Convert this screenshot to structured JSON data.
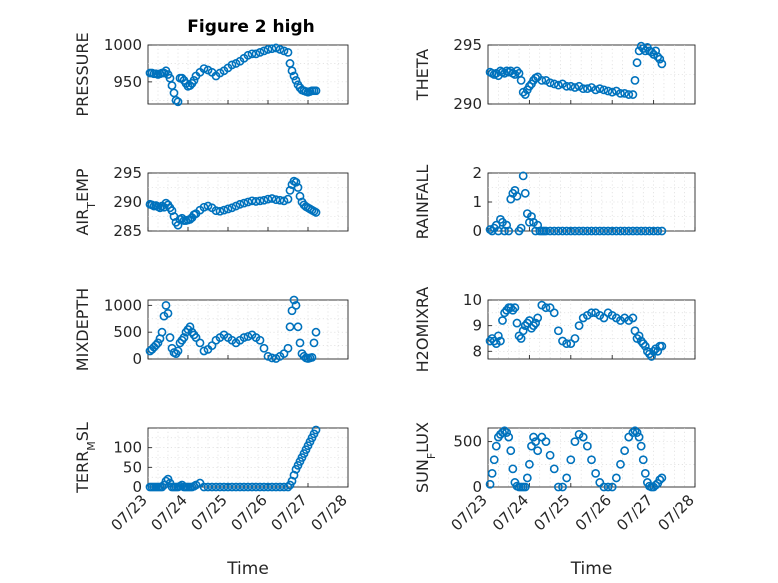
{
  "figure": {
    "title": "Figure 2 high"
  },
  "colors": {
    "marker": "#0072bd",
    "axis": "#262626",
    "grid": "#d4d4d4"
  },
  "chart_data": [
    {
      "type": "scatter",
      "ylabel": "PRESSURE",
      "ylabel_sub": "",
      "ylabel_rest": "",
      "title": "Figure 2 high",
      "ylim": [
        920,
        1000
      ],
      "yticks": [
        950,
        1000
      ],
      "xlim": [
        "07/23",
        "07/28"
      ],
      "xticks": [
        "07/23",
        "07/24",
        "07/25",
        "07/26",
        "07/27",
        "07/28"
      ],
      "xlabel": "",
      "grid": true,
      "x": [
        0.05,
        0.1,
        0.15,
        0.2,
        0.25,
        0.3,
        0.35,
        0.4,
        0.45,
        0.5,
        0.55,
        0.6,
        0.65,
        0.7,
        0.75,
        0.8,
        0.85,
        0.9,
        0.95,
        1.0,
        1.05,
        1.1,
        1.15,
        1.2,
        1.3,
        1.4,
        1.5,
        1.6,
        1.7,
        1.8,
        1.9,
        2.0,
        2.1,
        2.2,
        2.3,
        2.4,
        2.5,
        2.6,
        2.7,
        2.8,
        2.9,
        3.0,
        3.1,
        3.2,
        3.3,
        3.4,
        3.5,
        3.55,
        3.6,
        3.65,
        3.7,
        3.75,
        3.8,
        3.85,
        3.9,
        3.95,
        4.0,
        4.05,
        4.1,
        4.15,
        4.2
      ],
      "y": [
        962,
        962,
        961,
        961,
        960,
        961,
        962,
        962,
        965,
        960,
        955,
        945,
        935,
        925,
        923,
        955,
        955,
        952,
        948,
        944,
        945,
        948,
        952,
        958,
        963,
        968,
        966,
        963,
        958,
        962,
        965,
        969,
        973,
        975,
        978,
        982,
        986,
        988,
        988,
        990,
        992,
        994,
        995,
        996,
        994,
        992,
        990,
        975,
        965,
        958,
        952,
        946,
        942,
        939,
        938,
        937,
        936,
        937,
        938,
        938,
        938
      ]
    },
    {
      "type": "scatter",
      "ylabel": "THETA",
      "ylabel_sub": "",
      "ylabel_rest": "",
      "ylim": [
        290,
        295
      ],
      "yticks": [
        290,
        295
      ],
      "xlim": [
        "07/23",
        "07/28"
      ],
      "xticks": [
        "07/23",
        "07/24",
        "07/25",
        "07/26",
        "07/27",
        "07/28"
      ],
      "xlabel": "",
      "grid": true,
      "x": [
        0.05,
        0.1,
        0.15,
        0.2,
        0.25,
        0.3,
        0.35,
        0.4,
        0.45,
        0.5,
        0.55,
        0.6,
        0.65,
        0.7,
        0.75,
        0.8,
        0.85,
        0.9,
        0.95,
        1.0,
        1.05,
        1.1,
        1.15,
        1.2,
        1.3,
        1.4,
        1.5,
        1.6,
        1.7,
        1.8,
        1.9,
        2.0,
        2.1,
        2.2,
        2.3,
        2.4,
        2.5,
        2.6,
        2.7,
        2.8,
        2.9,
        3.0,
        3.1,
        3.2,
        3.3,
        3.4,
        3.5,
        3.55,
        3.6,
        3.65,
        3.7,
        3.75,
        3.8,
        3.85,
        3.9,
        3.95,
        4.0,
        4.05,
        4.1,
        4.15,
        4.2
      ],
      "y": [
        292.7,
        292.6,
        292.5,
        292.6,
        292.4,
        292.8,
        292.7,
        292.6,
        292.8,
        292.7,
        292.8,
        292.6,
        292.5,
        292.8,
        292.6,
        292.0,
        291.0,
        290.8,
        291.2,
        291.5,
        291.7,
        292.0,
        292.2,
        292.3,
        292.0,
        292.0,
        291.8,
        291.7,
        291.6,
        291.7,
        291.5,
        291.5,
        291.4,
        291.5,
        291.3,
        291.3,
        291.4,
        291.2,
        291.3,
        291.2,
        291.1,
        291.0,
        291.1,
        290.9,
        290.9,
        290.8,
        290.8,
        292.0,
        293.5,
        294.5,
        294.9,
        294.7,
        294.5,
        294.8,
        294.5,
        294.4,
        294.2,
        294.5,
        294.0,
        293.8,
        293.4
      ]
    },
    {
      "type": "scatter",
      "ylabel": "AIR",
      "ylabel_sub": "T",
      "ylabel_rest": "EMP",
      "ylim": [
        285,
        295
      ],
      "yticks": [
        285,
        290,
        295
      ],
      "xlim": [
        "07/23",
        "07/28"
      ],
      "xticks": [
        "07/23",
        "07/24",
        "07/25",
        "07/26",
        "07/27",
        "07/28"
      ],
      "xlabel": "",
      "grid": true,
      "x": [
        0.05,
        0.1,
        0.15,
        0.2,
        0.25,
        0.3,
        0.35,
        0.4,
        0.45,
        0.5,
        0.55,
        0.6,
        0.65,
        0.7,
        0.75,
        0.8,
        0.85,
        0.9,
        0.95,
        1.0,
        1.05,
        1.1,
        1.15,
        1.2,
        1.3,
        1.4,
        1.5,
        1.6,
        1.7,
        1.8,
        1.9,
        2.0,
        2.1,
        2.2,
        2.3,
        2.4,
        2.5,
        2.6,
        2.7,
        2.8,
        2.9,
        3.0,
        3.1,
        3.2,
        3.3,
        3.4,
        3.5,
        3.55,
        3.6,
        3.65,
        3.7,
        3.75,
        3.8,
        3.85,
        3.9,
        3.95,
        4.0,
        4.05,
        4.1,
        4.15,
        4.2
      ],
      "y": [
        289.6,
        289.5,
        289.3,
        289.4,
        289.2,
        289.0,
        289.3,
        289.1,
        289.8,
        289.5,
        289.0,
        288.5,
        287.5,
        286.5,
        286.0,
        287.0,
        287.2,
        286.8,
        286.8,
        286.9,
        287.0,
        287.3,
        287.8,
        288.0,
        288.6,
        289.1,
        289.3,
        289.0,
        288.5,
        288.4,
        288.6,
        288.8,
        289.0,
        289.3,
        289.6,
        289.8,
        290.0,
        290.2,
        290.1,
        290.2,
        290.3,
        290.5,
        290.6,
        290.4,
        290.3,
        290.2,
        290.5,
        292.0,
        293.0,
        293.6,
        293.4,
        292.5,
        291.0,
        290.0,
        289.5,
        289.2,
        289.0,
        288.8,
        288.6,
        288.4,
        288.2
      ]
    },
    {
      "type": "scatter",
      "ylabel": "RAINFALL",
      "ylabel_sub": "",
      "ylabel_rest": "",
      "ylim": [
        0,
        2
      ],
      "yticks": [
        0,
        1,
        2
      ],
      "xlim": [
        "07/23",
        "07/28"
      ],
      "xticks": [
        "07/23",
        "07/24",
        "07/25",
        "07/26",
        "07/27",
        "07/28"
      ],
      "xlabel": "",
      "grid": true,
      "x": [
        0.05,
        0.1,
        0.15,
        0.2,
        0.25,
        0.3,
        0.35,
        0.4,
        0.45,
        0.5,
        0.55,
        0.6,
        0.65,
        0.7,
        0.75,
        0.8,
        0.85,
        0.9,
        0.95,
        1.0,
        1.05,
        1.1,
        1.15,
        1.2,
        1.25,
        1.3,
        1.35,
        1.4,
        1.5,
        1.6,
        1.7,
        1.8,
        1.9,
        2.0,
        2.1,
        2.2,
        2.3,
        2.4,
        2.5,
        2.6,
        2.7,
        2.8,
        2.9,
        3.0,
        3.1,
        3.2,
        3.3,
        3.4,
        3.5,
        3.6,
        3.7,
        3.8,
        3.9,
        4.0,
        4.1,
        4.2
      ],
      "y": [
        0.05,
        0.0,
        0.1,
        0.2,
        0.0,
        0.4,
        0.3,
        0.0,
        0.2,
        0.0,
        1.1,
        1.3,
        1.4,
        1.2,
        0.0,
        0.1,
        1.9,
        1.3,
        0.6,
        0.3,
        0.5,
        0.3,
        0.0,
        0.2,
        0.0,
        0.0,
        0.0,
        0.0,
        0.0,
        0.0,
        0.0,
        0.0,
        0.0,
        0.0,
        0.0,
        0.0,
        0.0,
        0.0,
        0.0,
        0.0,
        0.0,
        0.0,
        0.0,
        0.0,
        0.0,
        0.0,
        0.0,
        0.0,
        0.0,
        0.0,
        0.0,
        0.0,
        0.0,
        0.0,
        0.0,
        0.0
      ]
    },
    {
      "type": "scatter",
      "ylabel": "MIXDEPTH",
      "ylabel_sub": "",
      "ylabel_rest": "",
      "ylim": [
        0,
        1100
      ],
      "yticks": [
        0,
        500,
        1000
      ],
      "xlim": [
        "07/23",
        "07/28"
      ],
      "xticks": [
        "07/23",
        "07/24",
        "07/25",
        "07/26",
        "07/27",
        "07/28"
      ],
      "xlabel": "",
      "grid": true,
      "x": [
        0.05,
        0.1,
        0.15,
        0.2,
        0.25,
        0.3,
        0.35,
        0.4,
        0.45,
        0.5,
        0.55,
        0.6,
        0.65,
        0.7,
        0.75,
        0.8,
        0.85,
        0.9,
        0.95,
        1.0,
        1.05,
        1.1,
        1.15,
        1.2,
        1.3,
        1.4,
        1.5,
        1.6,
        1.7,
        1.8,
        1.9,
        2.0,
        2.1,
        2.2,
        2.3,
        2.4,
        2.5,
        2.6,
        2.7,
        2.8,
        2.9,
        3.0,
        3.1,
        3.2,
        3.3,
        3.4,
        3.5,
        3.55,
        3.6,
        3.65,
        3.7,
        3.75,
        3.8,
        3.85,
        3.9,
        3.95,
        4.0,
        4.05,
        4.1,
        4.15,
        4.2
      ],
      "y": [
        150,
        180,
        220,
        260,
        300,
        380,
        500,
        800,
        1000,
        850,
        400,
        200,
        120,
        100,
        150,
        300,
        350,
        400,
        500,
        550,
        600,
        500,
        450,
        400,
        300,
        150,
        180,
        250,
        350,
        400,
        450,
        400,
        350,
        300,
        350,
        400,
        420,
        450,
        400,
        350,
        200,
        50,
        20,
        10,
        50,
        100,
        200,
        600,
        900,
        1100,
        1000,
        600,
        300,
        100,
        50,
        20,
        10,
        20,
        30,
        300,
        500
      ]
    },
    {
      "type": "scatter",
      "ylabel": "H2OMIXRA",
      "ylabel_sub": "",
      "ylabel_rest": "",
      "ylim": [
        7.7,
        10
      ],
      "yticks": [
        8,
        9,
        10
      ],
      "xlim": [
        "07/23",
        "07/28"
      ],
      "xticks": [
        "07/23",
        "07/24",
        "07/25",
        "07/26",
        "07/27",
        "07/28"
      ],
      "xlabel": "",
      "grid": true,
      "x": [
        0.05,
        0.1,
        0.15,
        0.2,
        0.25,
        0.3,
        0.35,
        0.4,
        0.45,
        0.5,
        0.55,
        0.6,
        0.65,
        0.7,
        0.75,
        0.8,
        0.85,
        0.9,
        0.95,
        1.0,
        1.05,
        1.1,
        1.15,
        1.2,
        1.3,
        1.4,
        1.5,
        1.6,
        1.7,
        1.8,
        1.9,
        2.0,
        2.1,
        2.2,
        2.3,
        2.4,
        2.5,
        2.6,
        2.7,
        2.8,
        2.9,
        3.0,
        3.1,
        3.2,
        3.3,
        3.4,
        3.5,
        3.55,
        3.6,
        3.65,
        3.7,
        3.75,
        3.8,
        3.85,
        3.9,
        3.95,
        4.0,
        4.05,
        4.1,
        4.15,
        4.2
      ],
      "y": [
        8.4,
        8.5,
        8.4,
        8.3,
        8.6,
        8.4,
        9.2,
        9.5,
        9.6,
        9.7,
        9.7,
        9.6,
        9.7,
        9.1,
        8.6,
        8.5,
        8.8,
        9.0,
        9.1,
        9.2,
        8.9,
        9.0,
        9.1,
        9.3,
        9.8,
        9.7,
        9.7,
        9.5,
        8.8,
        8.4,
        8.3,
        8.3,
        8.5,
        9.0,
        9.3,
        9.4,
        9.5,
        9.5,
        9.4,
        9.3,
        9.5,
        9.4,
        9.3,
        9.2,
        9.3,
        9.2,
        9.3,
        8.8,
        8.5,
        8.6,
        8.4,
        8.3,
        8.2,
        8.0,
        7.9,
        7.8,
        8.0,
        8.1,
        8.0,
        8.2,
        8.2
      ]
    },
    {
      "type": "scatter",
      "ylabel": "TERR",
      "ylabel_sub": "M",
      "ylabel_rest": "SL",
      "ylim": [
        0,
        150
      ],
      "yticks": [
        0,
        50,
        100
      ],
      "xlim": [
        "07/23",
        "07/28"
      ],
      "xticks": [
        "07/23",
        "07/24",
        "07/25",
        "07/26",
        "07/27",
        "07/28"
      ],
      "xlabel": "Time",
      "grid": true,
      "x": [
        0.05,
        0.1,
        0.15,
        0.2,
        0.25,
        0.3,
        0.35,
        0.4,
        0.45,
        0.5,
        0.55,
        0.6,
        0.65,
        0.7,
        0.75,
        0.8,
        0.85,
        0.9,
        0.95,
        1.0,
        1.05,
        1.1,
        1.15,
        1.2,
        1.3,
        1.4,
        1.5,
        1.6,
        1.7,
        1.8,
        1.9,
        2.0,
        2.1,
        2.2,
        2.3,
        2.4,
        2.5,
        2.6,
        2.7,
        2.8,
        2.9,
        3.0,
        3.1,
        3.2,
        3.3,
        3.4,
        3.5,
        3.55,
        3.6,
        3.65,
        3.7,
        3.75,
        3.8,
        3.85,
        3.9,
        3.95,
        4.0,
        4.05,
        4.1,
        4.15,
        4.2
      ],
      "y": [
        0,
        0,
        0,
        0,
        0,
        0,
        0,
        5,
        15,
        20,
        10,
        0,
        0,
        0,
        0,
        2,
        5,
        0,
        0,
        0,
        0,
        0,
        2,
        5,
        10,
        0,
        0,
        0,
        0,
        0,
        0,
        0,
        0,
        0,
        0,
        0,
        0,
        0,
        0,
        0,
        0,
        0,
        0,
        0,
        0,
        0,
        0,
        5,
        15,
        30,
        45,
        55,
        65,
        75,
        85,
        95,
        105,
        115,
        125,
        135,
        145
      ]
    },
    {
      "type": "scatter",
      "ylabel": "SUN",
      "ylabel_sub": "F",
      "ylabel_rest": "LUX",
      "ylim": [
        0,
        650
      ],
      "yticks": [
        0,
        500
      ],
      "xlim": [
        "07/23",
        "07/28"
      ],
      "xticks": [
        "07/23",
        "07/24",
        "07/25",
        "07/26",
        "07/27",
        "07/28"
      ],
      "xlabel": "Time",
      "grid": true,
      "x": [
        0.05,
        0.1,
        0.15,
        0.2,
        0.25,
        0.3,
        0.35,
        0.4,
        0.45,
        0.5,
        0.55,
        0.6,
        0.65,
        0.7,
        0.75,
        0.8,
        0.85,
        0.9,
        0.95,
        1.0,
        1.05,
        1.1,
        1.15,
        1.2,
        1.3,
        1.4,
        1.5,
        1.6,
        1.7,
        1.8,
        1.9,
        2.0,
        2.1,
        2.2,
        2.3,
        2.4,
        2.5,
        2.6,
        2.7,
        2.8,
        2.9,
        3.0,
        3.1,
        3.2,
        3.3,
        3.4,
        3.5,
        3.55,
        3.6,
        3.65,
        3.7,
        3.75,
        3.8,
        3.85,
        3.9,
        3.95,
        4.0,
        4.05,
        4.1,
        4.15,
        4.2
      ],
      "y": [
        30,
        150,
        300,
        450,
        550,
        580,
        600,
        620,
        600,
        550,
        400,
        200,
        50,
        10,
        0,
        0,
        0,
        0,
        100,
        250,
        450,
        550,
        500,
        400,
        550,
        500,
        350,
        200,
        0,
        0,
        100,
        300,
        500,
        580,
        550,
        450,
        300,
        150,
        50,
        0,
        0,
        0,
        100,
        250,
        400,
        550,
        600,
        620,
        600,
        550,
        450,
        300,
        150,
        50,
        10,
        0,
        0,
        20,
        40,
        80,
        100
      ]
    }
  ]
}
